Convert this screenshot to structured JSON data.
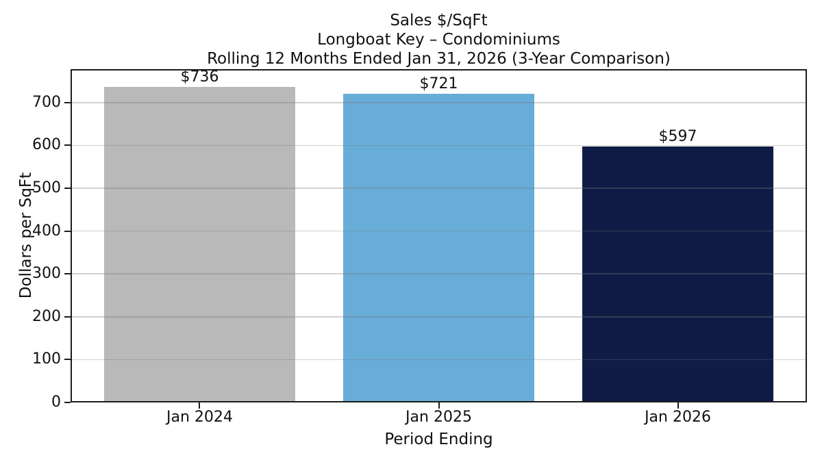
{
  "chart_data": {
    "type": "bar",
    "title": "Sales $/SqFt — Longboat Key – Condominiums — Rolling 12 Months Ended Jan 31, 2026 (3-Year Comparison)",
    "title_lines": [
      "Sales $/SqFt",
      "Longboat Key – Condominiums",
      "Rolling 12 Months Ended Jan 31, 2026 (3-Year Comparison)"
    ],
    "categories": [
      "Jan 2024",
      "Jan 2025",
      "Jan 2026"
    ],
    "values": [
      736,
      721,
      597
    ],
    "value_labels": [
      "$736",
      "$721",
      "$597"
    ],
    "bar_colors": [
      "#b9b9b9",
      "#68acd8",
      "#0f1d46"
    ],
    "xlabel": "Period Ending",
    "ylabel": "Dollars per SqFt",
    "ylim": [
      0,
      778
    ],
    "yticks": [
      0,
      100,
      200,
      300,
      400,
      500,
      600,
      700
    ],
    "grid": "horizontal",
    "legend": "none"
  },
  "colors": {
    "background": "#ffffff",
    "spine": "#1b1b1b",
    "gridline": "rgba(120,120,120,0.35)",
    "text": "#111111"
  }
}
